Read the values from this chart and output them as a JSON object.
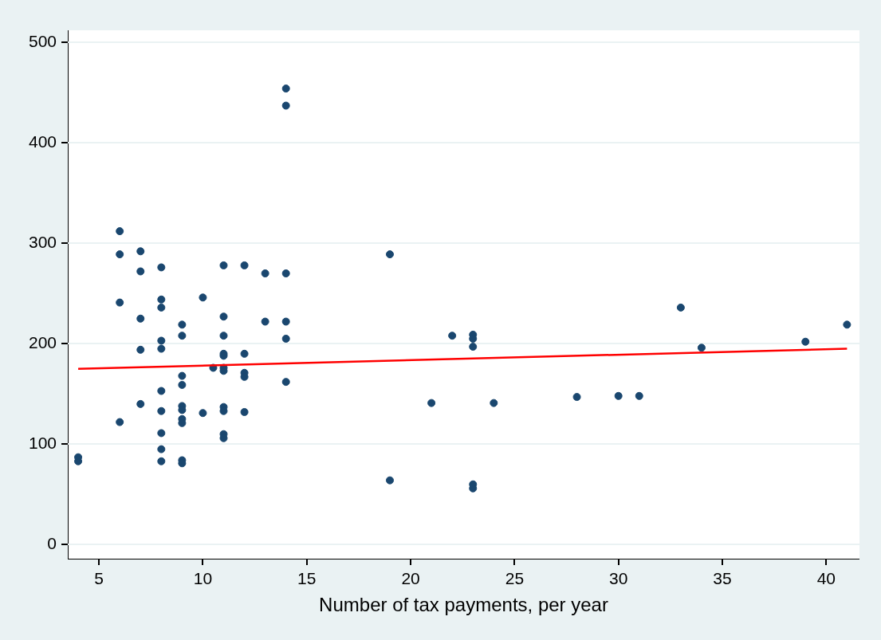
{
  "chart_data": {
    "type": "scatter",
    "xlabel": "Number of tax payments, per year",
    "grid": "y",
    "legend": false,
    "xlim": [
      3.5,
      41.6
    ],
    "xticks": [
      5,
      10,
      15,
      20,
      25,
      30,
      35,
      40
    ],
    "ylim": [
      -14,
      512
    ],
    "yticks": [
      0,
      100,
      200,
      300,
      400,
      500
    ],
    "series": [
      {
        "marker": "circle",
        "color": "#1a476f",
        "x": [
          4,
          4,
          6,
          6,
          6,
          6,
          7,
          7,
          7,
          7,
          7,
          8,
          8,
          8,
          8,
          8,
          8,
          8,
          8,
          8,
          8,
          9,
          9,
          9,
          9,
          9,
          9,
          9,
          9,
          9,
          9,
          10,
          10,
          10.5,
          11,
          11,
          11,
          11,
          11,
          11,
          11,
          11,
          11,
          11,
          11,
          12,
          12,
          12,
          12,
          12,
          13,
          13,
          14,
          14,
          14,
          14,
          14,
          14,
          19,
          19,
          21,
          22,
          23,
          23,
          23,
          23,
          23,
          24,
          28,
          30,
          31,
          33,
          34,
          39,
          41
        ],
        "values": [
          83,
          87,
          312,
          289,
          241,
          122,
          292,
          272,
          225,
          194,
          140,
          276,
          244,
          236,
          203,
          195,
          153,
          133,
          111,
          95,
          83,
          219,
          208,
          168,
          159,
          138,
          134,
          125,
          121,
          84,
          81,
          246,
          131,
          176,
          278,
          227,
          208,
          190,
          188,
          176,
          173,
          137,
          133,
          110,
          106,
          278,
          190,
          171,
          167,
          132,
          270,
          222,
          454,
          437,
          270,
          222,
          205,
          162,
          289,
          64,
          141,
          208,
          209,
          205,
          197,
          60,
          56,
          141,
          147,
          148,
          148,
          236,
          196,
          202,
          219
        ]
      },
      {
        "type": "line",
        "marker": "none",
        "color": "#ff0000",
        "x": [
          4,
          41
        ],
        "values": [
          175,
          195
        ]
      }
    ]
  }
}
